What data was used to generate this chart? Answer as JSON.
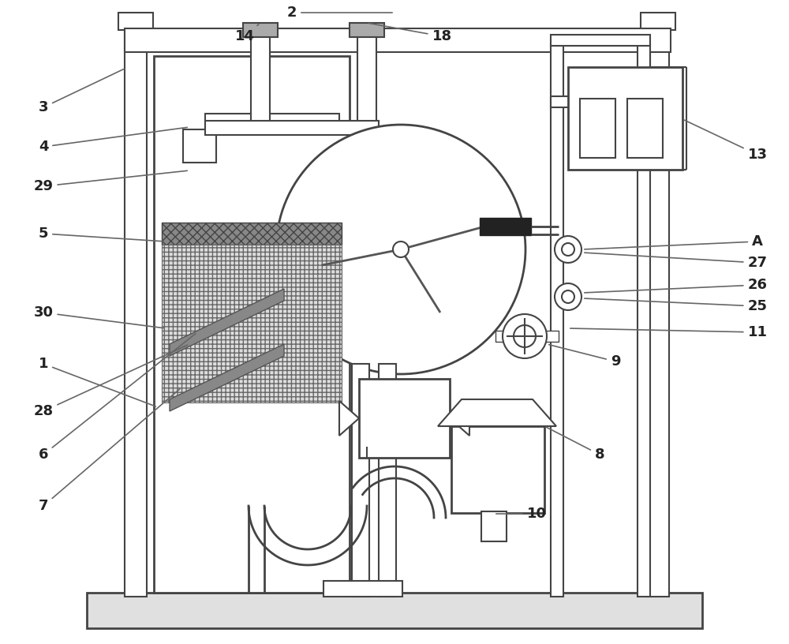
{
  "lc": "#444444",
  "lw": 1.5,
  "bg": "white"
}
